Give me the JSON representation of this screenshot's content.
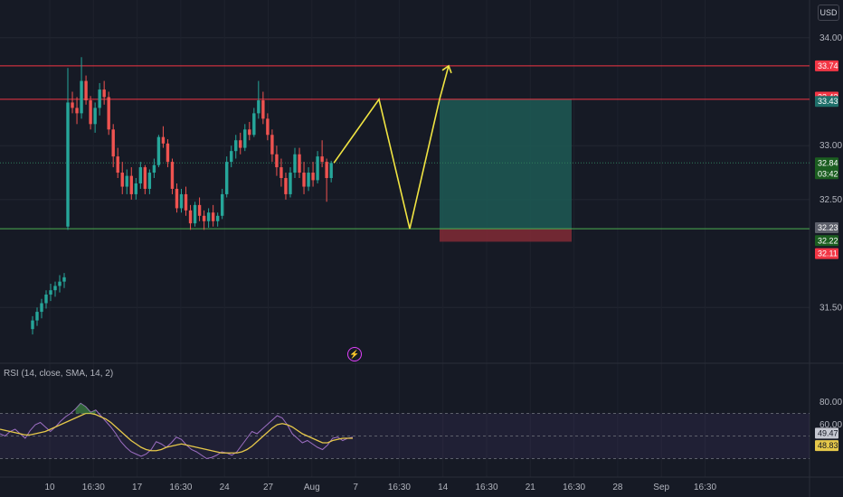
{
  "currency": "USD",
  "rsi_label": "RSI (14, close, SMA, 14, 2)",
  "colors": {
    "background": "#161a25",
    "up": "#26a69a",
    "down": "#ef5350",
    "resistance": "#f23645",
    "support": "#4caf50",
    "projection": "#f0e442",
    "rsi": "#9c6ec2",
    "rsi_ma": "#e6c84a",
    "profit_zone": "#1d5b55",
    "loss_zone": "#7b2a35"
  },
  "icons": {
    "alert": "lightning-icon"
  },
  "chart_data": {
    "type": "candlestick",
    "title": "",
    "y_ticks": [
      "34.00",
      "33.00",
      "32.50",
      "31.50"
    ],
    "y_tick_values": [
      34.0,
      33.0,
      32.5,
      31.5
    ],
    "x_ticks": [
      "10",
      "16:30",
      "17",
      "16:30",
      "24",
      "27",
      "Aug",
      "7",
      "16:30",
      "14",
      "16:30",
      "21",
      "16:30",
      "28",
      "Sep",
      "16:30"
    ],
    "ylim": [
      31.0,
      34.35
    ],
    "price_tags": [
      {
        "label": "33.74",
        "value": 33.74,
        "color": "#f23645",
        "sub": ""
      },
      {
        "label": "33.43",
        "value": 33.45,
        "color": "#f23645",
        "sub": ""
      },
      {
        "label": "33.43",
        "value": 33.41,
        "color": "#1f6f6a",
        "sub": ""
      },
      {
        "label": "32.84",
        "value": 32.84,
        "color": "#1b5e20",
        "sub": "03:42"
      },
      {
        "label": "32.23",
        "value": 32.24,
        "color": "#5d606b",
        "sub": ""
      },
      {
        "label": "32.22",
        "value": 32.12,
        "color": "#1b5e20",
        "sub": ""
      },
      {
        "label": "32.11",
        "value": 32.0,
        "color": "#f23645",
        "sub": ""
      }
    ],
    "horizontal_levels": [
      {
        "name": "resistance-high",
        "value": 33.74
      },
      {
        "name": "resistance",
        "value": 33.43
      },
      {
        "name": "support",
        "value": 32.23
      }
    ],
    "projection_path": [
      {
        "x": "Aug",
        "y": 32.84
      },
      {
        "y": 33.43
      },
      {
        "y": 32.23
      },
      {
        "y": 33.43
      },
      {
        "y": 33.74
      }
    ],
    "position": {
      "entry": 32.23,
      "target": 33.43,
      "stop": 32.11
    },
    "candles": [
      {
        "o": 31.3,
        "h": 31.42,
        "l": 31.25,
        "c": 31.38
      },
      {
        "o": 31.38,
        "h": 31.5,
        "l": 31.33,
        "c": 31.46
      },
      {
        "o": 31.46,
        "h": 31.58,
        "l": 31.4,
        "c": 31.54
      },
      {
        "o": 31.54,
        "h": 31.66,
        "l": 31.49,
        "c": 31.62
      },
      {
        "o": 31.62,
        "h": 31.72,
        "l": 31.56,
        "c": 31.66
      },
      {
        "o": 31.66,
        "h": 31.74,
        "l": 31.6,
        "c": 31.7
      },
      {
        "o": 31.7,
        "h": 31.8,
        "l": 31.64,
        "c": 31.74
      },
      {
        "o": 31.74,
        "h": 31.82,
        "l": 31.68,
        "c": 31.78
      },
      {
        "o": 32.25,
        "h": 33.72,
        "l": 32.22,
        "c": 33.4
      },
      {
        "o": 33.4,
        "h": 33.5,
        "l": 33.3,
        "c": 33.35
      },
      {
        "o": 33.35,
        "h": 33.45,
        "l": 33.2,
        "c": 33.3
      },
      {
        "o": 33.3,
        "h": 33.82,
        "l": 33.25,
        "c": 33.6
      },
      {
        "o": 33.6,
        "h": 33.65,
        "l": 33.38,
        "c": 33.42
      },
      {
        "o": 33.42,
        "h": 33.46,
        "l": 33.15,
        "c": 33.2
      },
      {
        "o": 33.2,
        "h": 33.4,
        "l": 33.12,
        "c": 33.35
      },
      {
        "o": 33.35,
        "h": 33.58,
        "l": 33.28,
        "c": 33.52
      },
      {
        "o": 33.52,
        "h": 33.6,
        "l": 33.38,
        "c": 33.45
      },
      {
        "o": 33.45,
        "h": 33.5,
        "l": 33.1,
        "c": 33.15
      },
      {
        "o": 33.15,
        "h": 33.2,
        "l": 32.8,
        "c": 32.9
      },
      {
        "o": 32.9,
        "h": 32.98,
        "l": 32.7,
        "c": 32.75
      },
      {
        "o": 32.75,
        "h": 32.85,
        "l": 32.55,
        "c": 32.62
      },
      {
        "o": 32.62,
        "h": 32.78,
        "l": 32.55,
        "c": 32.72
      },
      {
        "o": 32.72,
        "h": 32.8,
        "l": 32.5,
        "c": 32.55
      },
      {
        "o": 32.55,
        "h": 32.7,
        "l": 32.5,
        "c": 32.65
      },
      {
        "o": 32.65,
        "h": 32.85,
        "l": 32.6,
        "c": 32.8
      },
      {
        "o": 32.8,
        "h": 32.82,
        "l": 32.55,
        "c": 32.6
      },
      {
        "o": 32.6,
        "h": 32.78,
        "l": 32.55,
        "c": 32.75
      },
      {
        "o": 32.75,
        "h": 32.88,
        "l": 32.7,
        "c": 32.82
      },
      {
        "o": 32.82,
        "h": 33.1,
        "l": 32.8,
        "c": 33.08
      },
      {
        "o": 33.08,
        "h": 33.18,
        "l": 32.98,
        "c": 33.02
      },
      {
        "o": 33.02,
        "h": 33.06,
        "l": 32.8,
        "c": 32.85
      },
      {
        "o": 32.85,
        "h": 32.88,
        "l": 32.55,
        "c": 32.6
      },
      {
        "o": 32.6,
        "h": 32.65,
        "l": 32.38,
        "c": 32.42
      },
      {
        "o": 32.42,
        "h": 32.6,
        "l": 32.38,
        "c": 32.55
      },
      {
        "o": 32.55,
        "h": 32.62,
        "l": 32.35,
        "c": 32.4
      },
      {
        "o": 32.4,
        "h": 32.45,
        "l": 32.22,
        "c": 32.28
      },
      {
        "o": 32.28,
        "h": 32.48,
        "l": 32.25,
        "c": 32.45
      },
      {
        "o": 32.45,
        "h": 32.52,
        "l": 32.3,
        "c": 32.35
      },
      {
        "o": 32.35,
        "h": 32.4,
        "l": 32.22,
        "c": 32.3
      },
      {
        "o": 32.3,
        "h": 32.42,
        "l": 32.24,
        "c": 32.38
      },
      {
        "o": 32.38,
        "h": 32.45,
        "l": 32.25,
        "c": 32.3
      },
      {
        "o": 32.3,
        "h": 32.38,
        "l": 32.25,
        "c": 32.35
      },
      {
        "o": 32.35,
        "h": 32.6,
        "l": 32.32,
        "c": 32.55
      },
      {
        "o": 32.55,
        "h": 32.9,
        "l": 32.52,
        "c": 32.85
      },
      {
        "o": 32.85,
        "h": 33.0,
        "l": 32.8,
        "c": 32.95
      },
      {
        "o": 32.95,
        "h": 33.1,
        "l": 32.88,
        "c": 33.05
      },
      {
        "o": 33.05,
        "h": 33.12,
        "l": 32.92,
        "c": 32.98
      },
      {
        "o": 32.98,
        "h": 33.2,
        "l": 32.95,
        "c": 33.15
      },
      {
        "o": 33.15,
        "h": 33.22,
        "l": 33.05,
        "c": 33.1
      },
      {
        "o": 33.1,
        "h": 33.35,
        "l": 33.08,
        "c": 33.3
      },
      {
        "o": 33.3,
        "h": 33.6,
        "l": 33.25,
        "c": 33.42
      },
      {
        "o": 33.42,
        "h": 33.5,
        "l": 33.2,
        "c": 33.25
      },
      {
        "o": 33.25,
        "h": 33.3,
        "l": 33.05,
        "c": 33.1
      },
      {
        "o": 33.1,
        "h": 33.15,
        "l": 32.85,
        "c": 32.92
      },
      {
        "o": 32.92,
        "h": 33.0,
        "l": 32.72,
        "c": 32.8
      },
      {
        "o": 32.8,
        "h": 32.88,
        "l": 32.62,
        "c": 32.7
      },
      {
        "o": 32.7,
        "h": 32.75,
        "l": 32.5,
        "c": 32.55
      },
      {
        "o": 32.55,
        "h": 32.8,
        "l": 32.52,
        "c": 32.75
      },
      {
        "o": 32.75,
        "h": 32.98,
        "l": 32.7,
        "c": 32.92
      },
      {
        "o": 32.92,
        "h": 32.98,
        "l": 32.7,
        "c": 32.75
      },
      {
        "o": 32.75,
        "h": 32.85,
        "l": 32.55,
        "c": 32.62
      },
      {
        "o": 32.62,
        "h": 32.8,
        "l": 32.58,
        "c": 32.75
      },
      {
        "o": 32.75,
        "h": 32.85,
        "l": 32.62,
        "c": 32.68
      },
      {
        "o": 32.68,
        "h": 32.95,
        "l": 32.65,
        "c": 32.9
      },
      {
        "o": 32.9,
        "h": 33.05,
        "l": 32.8,
        "c": 32.85
      },
      {
        "o": 32.85,
        "h": 32.88,
        "l": 32.48,
        "c": 32.7
      },
      {
        "o": 32.7,
        "h": 32.86,
        "l": 32.66,
        "c": 32.84
      }
    ],
    "rsi": {
      "ylim": [
        20,
        100
      ],
      "y_ticks": [
        "80.00",
        "60.00"
      ],
      "y_tick_values": [
        80,
        60
      ],
      "bands": [
        70,
        50,
        30
      ],
      "rsi_value": "49.47",
      "ma_value": "48.83",
      "rsi_values": [
        52,
        50,
        54,
        56,
        52,
        48,
        55,
        60,
        62,
        58,
        54,
        58,
        63,
        67,
        70,
        74,
        79,
        76,
        71,
        73,
        68,
        63,
        58,
        52,
        45,
        40,
        36,
        34,
        32,
        34,
        38,
        45,
        43,
        40,
        44,
        49,
        47,
        42,
        38,
        36,
        33,
        30,
        31,
        33,
        36,
        35,
        33,
        36,
        42,
        48,
        54,
        52,
        56,
        60,
        64,
        68,
        66,
        60,
        52,
        48,
        44,
        46,
        43,
        40,
        38,
        42,
        48,
        49,
        46,
        48,
        49
      ],
      "ma_values": [
        56,
        55,
        54,
        53,
        52,
        51,
        51,
        52,
        53,
        54,
        56,
        58,
        60,
        62,
        64,
        66,
        68,
        70,
        70,
        69,
        67,
        65,
        62,
        58,
        54,
        50,
        46,
        43,
        40,
        38,
        37,
        37,
        38,
        40,
        41,
        42,
        43,
        42,
        41,
        40,
        39,
        38,
        37,
        36,
        35,
        35,
        35,
        35,
        36,
        38,
        41,
        45,
        49,
        53,
        57,
        60,
        61,
        60,
        58,
        55,
        52,
        50,
        48,
        46,
        44,
        44,
        46,
        47,
        48,
        48,
        48
      ]
    }
  }
}
